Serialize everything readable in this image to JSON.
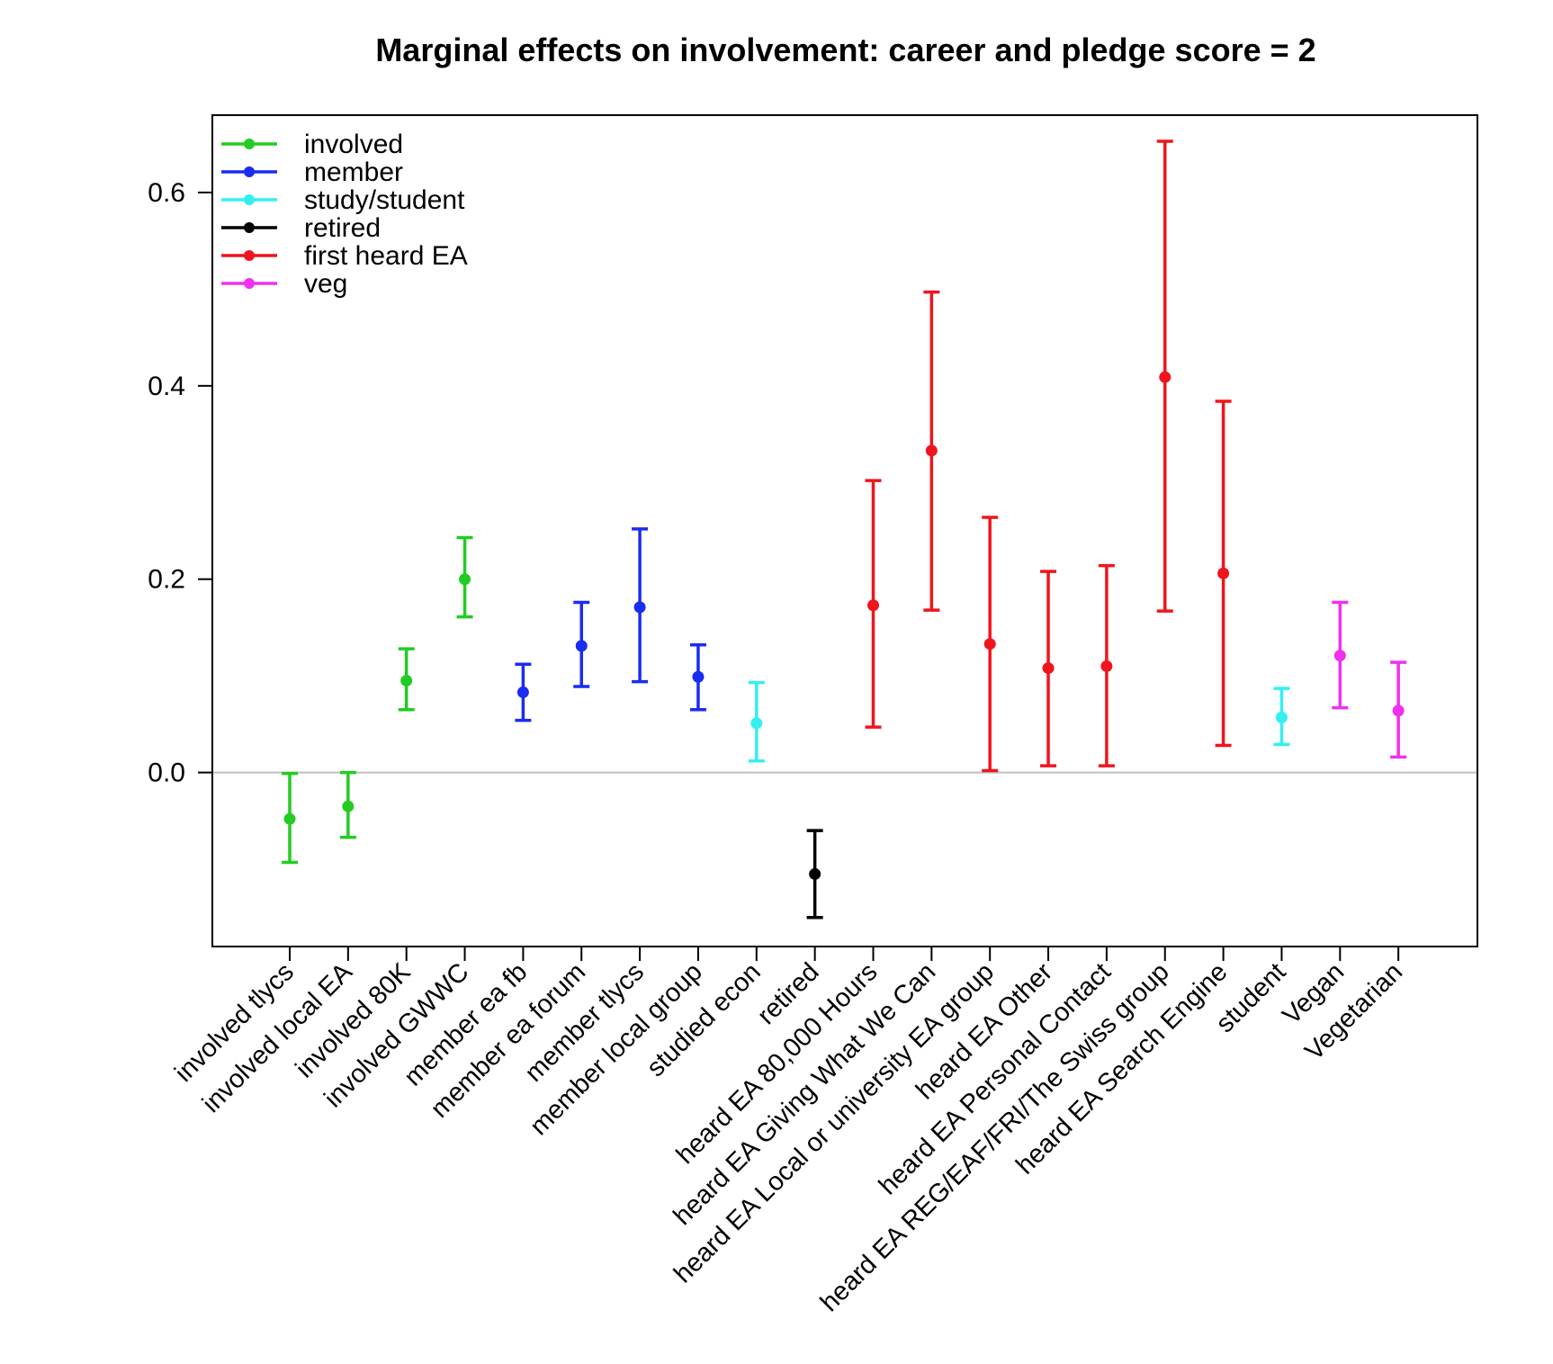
{
  "chart_data": {
    "type": "errorbar",
    "title": "Marginal effects on involvement: career and pledge score = 2",
    "xlabel": "",
    "ylabel": "",
    "ylim": [
      -0.18,
      0.68
    ],
    "yticks": [
      0.0,
      0.2,
      0.4,
      0.6
    ],
    "ytick_labels": [
      "0.0",
      "0.2",
      "0.4",
      "0.6"
    ],
    "reference_line": 0.0,
    "legend_position": "top-left",
    "groups": [
      {
        "name": "involved",
        "color": "#22cc22"
      },
      {
        "name": "member",
        "color": "#1a2cf0"
      },
      {
        "name": "study/student",
        "color": "#33f0f0"
      },
      {
        "name": "retired",
        "color": "#000000"
      },
      {
        "name": "first heard EA",
        "color": "#f0141e"
      },
      {
        "name": "veg",
        "color": "#f030f0"
      }
    ],
    "points": [
      {
        "label": "involved tlycs",
        "group": "involved",
        "value": -0.048,
        "lower": -0.093,
        "upper": -0.001
      },
      {
        "label": "involved local EA",
        "group": "involved",
        "value": -0.035,
        "lower": -0.067,
        "upper": 0.0
      },
      {
        "label": "involved 80K",
        "group": "involved",
        "value": 0.095,
        "lower": 0.065,
        "upper": 0.128
      },
      {
        "label": "involved GWWC",
        "group": "involved",
        "value": 0.2,
        "lower": 0.161,
        "upper": 0.243
      },
      {
        "label": "member ea fb",
        "group": "member",
        "value": 0.083,
        "lower": 0.054,
        "upper": 0.112
      },
      {
        "label": "member ea forum",
        "group": "member",
        "value": 0.131,
        "lower": 0.089,
        "upper": 0.176
      },
      {
        "label": "member tlycs",
        "group": "member",
        "value": 0.171,
        "lower": 0.094,
        "upper": 0.252
      },
      {
        "label": "member local group",
        "group": "member",
        "value": 0.099,
        "lower": 0.065,
        "upper": 0.132
      },
      {
        "label": "studied econ",
        "group": "study/student",
        "value": 0.051,
        "lower": 0.012,
        "upper": 0.093
      },
      {
        "label": "retired",
        "group": "retired",
        "value": -0.105,
        "lower": -0.15,
        "upper": -0.06
      },
      {
        "label": "heard EA 80,000 Hours",
        "group": "first heard EA",
        "value": 0.173,
        "lower": 0.047,
        "upper": 0.302
      },
      {
        "label": "heard EA Giving What We Can",
        "group": "first heard EA",
        "value": 0.333,
        "lower": 0.168,
        "upper": 0.497
      },
      {
        "label": "heard EA Local or university EA group",
        "group": "first heard EA",
        "value": 0.133,
        "lower": 0.002,
        "upper": 0.264
      },
      {
        "label": "heard EA Other",
        "group": "first heard EA",
        "value": 0.108,
        "lower": 0.007,
        "upper": 0.208
      },
      {
        "label": "heard EA Personal Contact",
        "group": "first heard EA",
        "value": 0.11,
        "lower": 0.007,
        "upper": 0.214
      },
      {
        "label": "heard EA REG/EAF/FRI/The Swiss group",
        "group": "first heard EA",
        "value": 0.409,
        "lower": 0.167,
        "upper": 0.653
      },
      {
        "label": "heard EA Search Engine",
        "group": "first heard EA",
        "value": 0.206,
        "lower": 0.028,
        "upper": 0.384
      },
      {
        "label": "student",
        "group": "study/student",
        "value": 0.057,
        "lower": 0.029,
        "upper": 0.087
      },
      {
        "label": "Vegan",
        "group": "veg",
        "value": 0.121,
        "lower": 0.067,
        "upper": 0.176
      },
      {
        "label": "Vegetarian",
        "group": "veg",
        "value": 0.064,
        "lower": 0.016,
        "upper": 0.114
      }
    ]
  }
}
